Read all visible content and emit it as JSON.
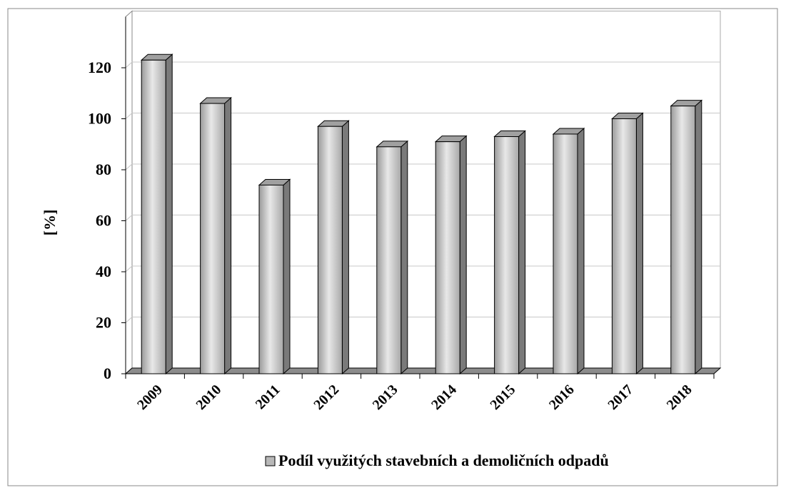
{
  "chart_data": {
    "type": "bar3d",
    "categories": [
      "2009",
      "2010",
      "2011",
      "2012",
      "2013",
      "2014",
      "2015",
      "2016",
      "2017",
      "2018"
    ],
    "series": [
      {
        "name": "Podíl využitých stavebních a demoličních odpadů",
        "color": "#b8b8b8",
        "values": [
          123,
          106,
          74,
          97,
          89,
          91,
          93,
          94,
          100,
          105
        ]
      }
    ],
    "y_label": "[%]",
    "ylim": [
      0,
      140
    ],
    "yticks": [
      0,
      20,
      40,
      60,
      80,
      100,
      120
    ],
    "grid": true,
    "legend": "bottom"
  }
}
